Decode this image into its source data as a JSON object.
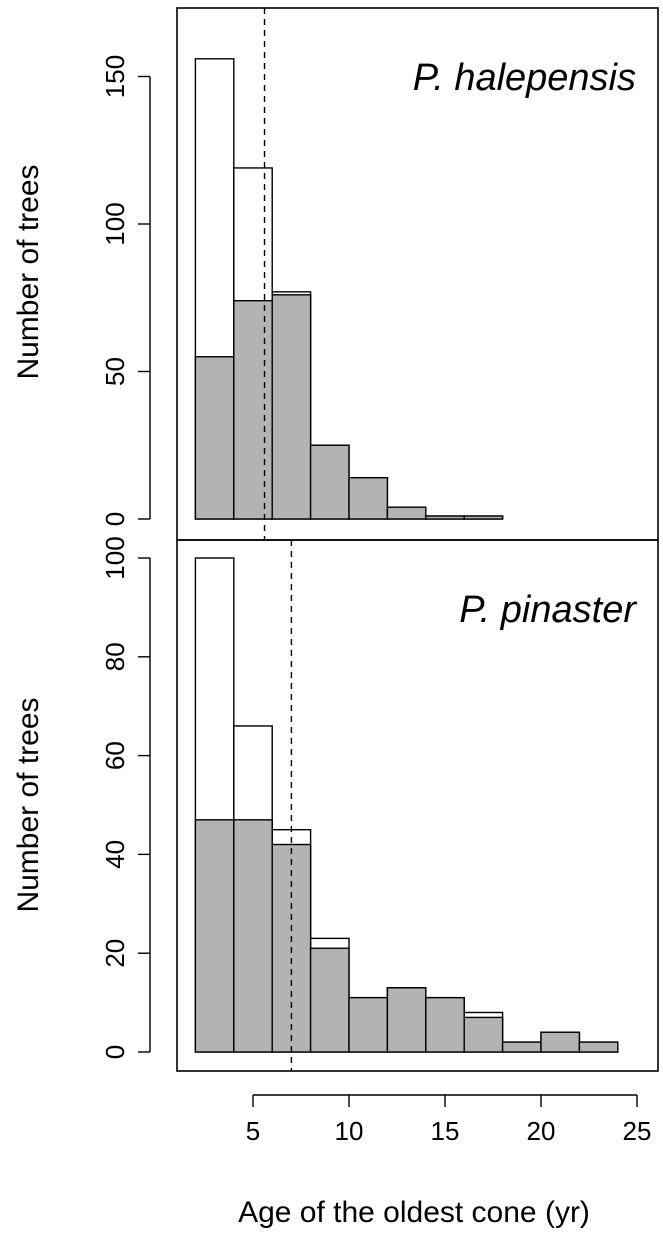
{
  "chart_data": [
    {
      "type": "bar",
      "title": "P. halepensis",
      "xlabel": "Age of the oldest cone (yr)",
      "ylabel": "Number of trees",
      "xlim": [
        2,
        25
      ],
      "ylim": [
        0,
        160
      ],
      "yticks": [
        0,
        50,
        100,
        150
      ],
      "xticks": [
        5,
        10,
        15,
        20,
        25
      ],
      "bin_edges": [
        2,
        4,
        6,
        8,
        10,
        12,
        14,
        16,
        18
      ],
      "series": [
        {
          "name": "",
          "color": "#ffffff",
          "values": [
            156,
            119,
            77,
            25,
            14,
            4,
            1,
            1
          ]
        },
        {
          "name": "",
          "color": "#b3b3b3",
          "values": [
            55,
            74,
            76,
            25,
            14,
            4,
            1,
            1
          ]
        }
      ],
      "reference_line_x": 5.6
    },
    {
      "type": "bar",
      "title": "P. pinaster",
      "xlabel": "Age of the oldest cone (yr)",
      "ylabel": "Number of trees",
      "xlim": [
        2,
        25
      ],
      "ylim": [
        0,
        100
      ],
      "yticks": [
        0,
        20,
        40,
        60,
        80,
        100
      ],
      "xticks": [
        5,
        10,
        15,
        20,
        25
      ],
      "bin_edges": [
        2,
        4,
        6,
        8,
        10,
        12,
        14,
        16,
        18,
        20,
        22,
        24
      ],
      "series": [
        {
          "name": "",
          "color": "#ffffff",
          "values": [
            100,
            66,
            45,
            23,
            11,
            13,
            11,
            8,
            2,
            4,
            2
          ]
        },
        {
          "name": "",
          "color": "#b3b3b3",
          "values": [
            47,
            47,
            42,
            21,
            11,
            13,
            11,
            7,
            2,
            4,
            2
          ]
        }
      ],
      "reference_line_x": 7
    }
  ]
}
